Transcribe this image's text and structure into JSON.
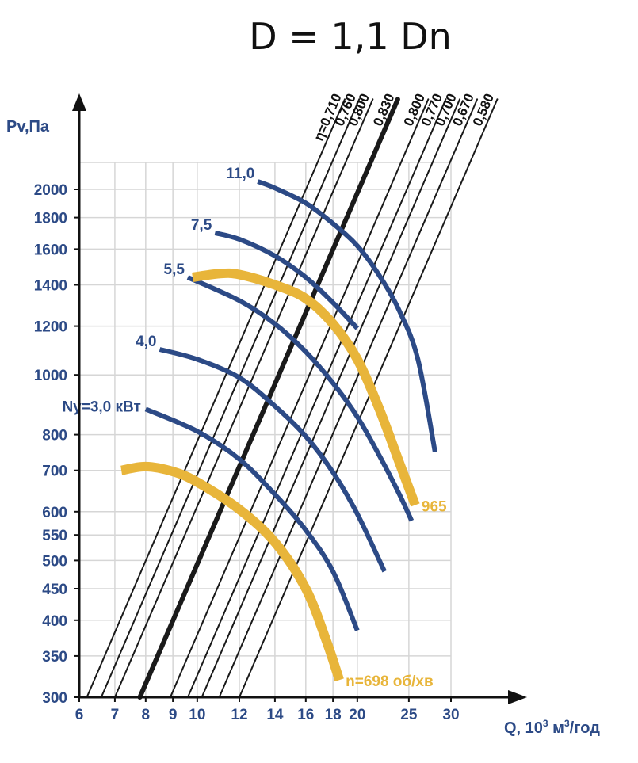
{
  "chart_data": {
    "type": "line",
    "title": "D = 1,1 Dn",
    "ylabel": "Pv,Па",
    "xlabel_main": "Q, 10",
    "xlabel_sup": "3",
    "xlabel_tail": " м",
    "xlabel_sup2": "3",
    "xlabel_end": "/год",
    "x_scale": "log",
    "y_scale": "log",
    "xlim": [
      6,
      30
    ],
    "ylim": [
      300,
      2200
    ],
    "x_ticks": [
      6,
      7,
      8,
      9,
      10,
      12,
      14,
      16,
      18,
      20,
      25,
      30
    ],
    "y_ticks": [
      300,
      350,
      400,
      450,
      500,
      550,
      600,
      700,
      800,
      1000,
      1200,
      1400,
      1600,
      1800,
      2000
    ],
    "grid": true,
    "colors": {
      "speed_curve": "#e8b53a",
      "power_curve": "#2c4a86",
      "efficiency_line": "#1a1a1a",
      "axis_text": "#2c4a86"
    },
    "speed_curves": [
      {
        "label": "n=698 об/хв",
        "points": [
          [
            7.2,
            700
          ],
          [
            8.0,
            710
          ],
          [
            9.0,
            697
          ],
          [
            10.0,
            670
          ],
          [
            12.0,
            605
          ],
          [
            14.0,
            535
          ],
          [
            16.0,
            450
          ],
          [
            17.5,
            370
          ],
          [
            18.5,
            320
          ]
        ]
      },
      {
        "label": "965",
        "points": [
          [
            9.8,
            1440
          ],
          [
            11.0,
            1460
          ],
          [
            12.0,
            1455
          ],
          [
            14.0,
            1400
          ],
          [
            16.0,
            1330
          ],
          [
            18.0,
            1210
          ],
          [
            20.0,
            1060
          ],
          [
            22.0,
            880
          ],
          [
            24.0,
            720
          ],
          [
            25.7,
            615
          ]
        ]
      }
    ],
    "power_curves": [
      {
        "label": "Ny=3,0 кВт",
        "points": [
          [
            8.0,
            880
          ],
          [
            10.0,
            810
          ],
          [
            12.0,
            730
          ],
          [
            14.0,
            640
          ],
          [
            16.0,
            560
          ],
          [
            18.0,
            480
          ],
          [
            20.0,
            385
          ]
        ]
      },
      {
        "label": "4,0",
        "points": [
          [
            8.5,
            1100
          ],
          [
            10.0,
            1060
          ],
          [
            12.0,
            990
          ],
          [
            14.0,
            890
          ],
          [
            16.0,
            795
          ],
          [
            18.0,
            695
          ],
          [
            20.0,
            595
          ],
          [
            22.5,
            480
          ]
        ]
      },
      {
        "label": "5,5",
        "points": [
          [
            9.6,
            1440
          ],
          [
            12.0,
            1320
          ],
          [
            14.0,
            1210
          ],
          [
            16.0,
            1090
          ],
          [
            18.0,
            970
          ],
          [
            20.0,
            855
          ],
          [
            22.0,
            740
          ],
          [
            24.0,
            640
          ],
          [
            25.3,
            580
          ]
        ]
      },
      {
        "label": "7,5",
        "points": [
          [
            10.8,
            1700
          ],
          [
            12.0,
            1660
          ],
          [
            14.0,
            1560
          ],
          [
            16.0,
            1440
          ],
          [
            18.0,
            1310
          ],
          [
            20.0,
            1190
          ]
        ]
      },
      {
        "label": "11,0",
        "points": [
          [
            13.0,
            2060
          ],
          [
            14.0,
            2010
          ],
          [
            16.0,
            1900
          ],
          [
            18.0,
            1760
          ],
          [
            20.0,
            1620
          ],
          [
            22.0,
            1450
          ],
          [
            24.0,
            1270
          ],
          [
            26.0,
            1060
          ],
          [
            28.0,
            750
          ]
        ]
      }
    ],
    "efficiency_lines": [
      {
        "label": "η=0,710",
        "x_at_300": 6.2,
        "bold": false
      },
      {
        "label": ",760",
        "x_at_300": 6.6,
        "bold": false
      },
      {
        "label": ",800",
        "x_at_300": 7.0,
        "bold": false
      },
      {
        "label": ",830",
        "x_at_300": 7.8,
        "bold": true
      },
      {
        "label": ",800",
        "x_at_300": 8.9,
        "bold": false
      },
      {
        "label": ",770",
        "x_at_300": 9.6,
        "bold": false
      },
      {
        "label": ",700",
        "x_at_300": 10.2,
        "bold": false
      },
      {
        "label": ",670",
        "x_at_300": 11.0,
        "bold": false
      },
      {
        "label": ",580",
        "x_at_300": 12.0,
        "bold": false
      }
    ],
    "efficiency_label_prefix": "0",
    "efficiency_labels_full": [
      "η=0,710",
      "0,760",
      "0,800",
      "0,830",
      "0,800",
      "0,770",
      "0,700",
      "0,670",
      "0,580"
    ]
  }
}
